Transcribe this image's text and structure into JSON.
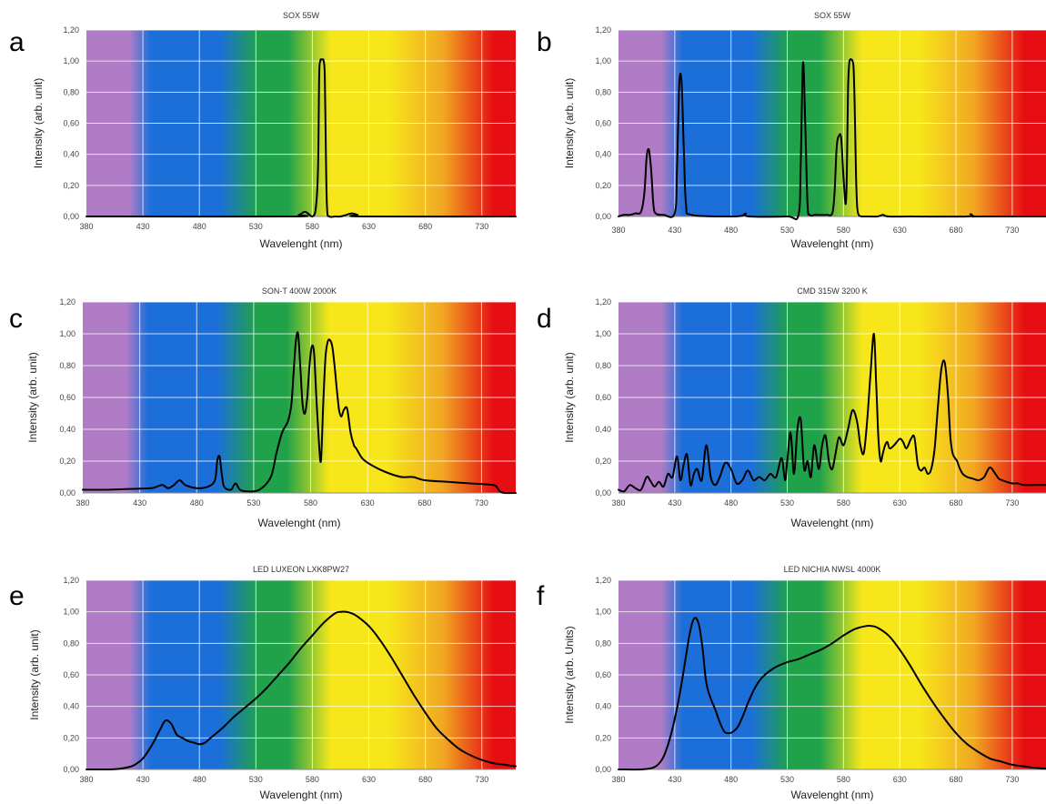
{
  "spectrum_band_colors": [
    "#b07cc6",
    "#1c6fd8",
    "#1fa24a",
    "#f7e71a",
    "#f1a822",
    "#e60d13"
  ],
  "chart_data": [
    {
      "panel": "a",
      "type": "line",
      "title": "SOX 55W",
      "xlabel": "Wavelenght (nm)",
      "ylabel": "Intensity (arb. unit)",
      "xlim": [
        380,
        760
      ],
      "ylim": [
        0,
        1.2
      ],
      "xticks": [
        "380",
        "430",
        "480",
        "530",
        "580",
        "630",
        "680",
        "730"
      ],
      "yticks": [
        "0,00",
        "0,20",
        "0,40",
        "0,60",
        "0,80",
        "1,00",
        "1,20"
      ],
      "grid": true,
      "background": "visible-spectrum",
      "x": [
        380,
        560,
        568,
        573,
        576,
        580,
        583,
        585,
        586,
        587,
        588,
        589,
        590,
        591,
        592,
        593,
        595,
        600,
        605,
        610,
        615,
        620,
        625,
        760
      ],
      "y": [
        0,
        0,
        0.01,
        0.03,
        0.02,
        0,
        0.05,
        0.3,
        0.9,
        1.0,
        1.01,
        1.01,
        1.0,
        0.9,
        0.4,
        0.05,
        0,
        0,
        0,
        0.01,
        0.02,
        0.01,
        0,
        0
      ]
    },
    {
      "panel": "b",
      "type": "line",
      "title": "SOX 55W",
      "xlabel": "Wavelenght (nm)",
      "ylabel": "Intensity (arb. unit)",
      "xlim": [
        380,
        760
      ],
      "ylim": [
        0,
        1.2
      ],
      "xticks": [
        "380",
        "430",
        "480",
        "530",
        "580",
        "630",
        "680",
        "730"
      ],
      "yticks": [
        "0,00",
        "0,20",
        "0,40",
        "0,60",
        "0,80",
        "1,00",
        "1,20"
      ],
      "grid": true,
      "background": "visible-spectrum",
      "x": [
        380,
        385,
        390,
        395,
        400,
        403,
        405,
        407,
        409,
        411,
        413,
        420,
        430,
        432,
        434,
        436,
        438,
        440,
        445,
        480,
        490,
        493,
        496,
        530,
        540,
        542,
        544,
        546,
        548,
        550,
        555,
        565,
        570,
        572,
        574,
        576,
        578,
        580,
        582,
        583,
        584,
        585,
        586,
        587,
        588,
        589,
        590,
        591,
        592,
        593,
        594,
        596,
        600,
        610,
        615,
        620,
        640,
        690,
        693,
        696,
        700,
        760
      ],
      "y": [
        0,
        0.01,
        0.01,
        0.02,
        0.03,
        0.15,
        0.38,
        0.43,
        0.3,
        0.08,
        0.02,
        0.01,
        0.02,
        0.3,
        0.85,
        0.87,
        0.45,
        0.08,
        0.01,
        0,
        0.005,
        0.02,
        0,
        0,
        0.01,
        0.35,
        0.99,
        0.6,
        0.08,
        0.01,
        0.01,
        0.01,
        0.02,
        0.15,
        0.45,
        0.52,
        0.5,
        0.25,
        0.08,
        0.3,
        0.8,
        0.98,
        1.01,
        1.01,
        1.0,
        0.95,
        0.7,
        0.3,
        0.08,
        0.02,
        0.005,
        0,
        0,
        0,
        0.01,
        0,
        0,
        0,
        0.015,
        0,
        0,
        0
      ]
    },
    {
      "panel": "c",
      "type": "line",
      "title": "SON-T 400W 2000K",
      "xlabel": "Wavelenght (nm)",
      "ylabel": "Intensity (arb. unit)",
      "xlim": [
        380,
        760
      ],
      "ylim": [
        0,
        1.2
      ],
      "xticks": [
        "380",
        "430",
        "480",
        "530",
        "580",
        "630",
        "680",
        "730"
      ],
      "yticks": [
        "0,00",
        "0,20",
        "0,40",
        "0,60",
        "0,80",
        "1,00",
        "1,20"
      ],
      "grid": true,
      "background": "visible-spectrum",
      "x": [
        380,
        400,
        420,
        440,
        445,
        450,
        455,
        460,
        465,
        470,
        480,
        490,
        496,
        498,
        500,
        502,
        504,
        510,
        514,
        518,
        525,
        535,
        545,
        550,
        555,
        560,
        563,
        565,
        567,
        569,
        571,
        573,
        575,
        577,
        579,
        581,
        583,
        585,
        587,
        589,
        591,
        593,
        595,
        597,
        599,
        601,
        603,
        605,
        607,
        609,
        612,
        615,
        618,
        620,
        625,
        630,
        640,
        650,
        660,
        670,
        680,
        700,
        720,
        740,
        744,
        746,
        750,
        760
      ],
      "y": [
        0.02,
        0.02,
        0.025,
        0.03,
        0.04,
        0.05,
        0.03,
        0.05,
        0.08,
        0.05,
        0.03,
        0.04,
        0.08,
        0.2,
        0.23,
        0.12,
        0.04,
        0.02,
        0.06,
        0.02,
        0.01,
        0.02,
        0.1,
        0.25,
        0.38,
        0.45,
        0.55,
        0.75,
        0.95,
        1.0,
        0.78,
        0.55,
        0.5,
        0.6,
        0.8,
        0.92,
        0.88,
        0.6,
        0.35,
        0.2,
        0.55,
        0.85,
        0.95,
        0.96,
        0.92,
        0.8,
        0.65,
        0.52,
        0.48,
        0.52,
        0.53,
        0.38,
        0.3,
        0.28,
        0.22,
        0.19,
        0.15,
        0.12,
        0.1,
        0.1,
        0.08,
        0.07,
        0.06,
        0.05,
        0.03,
        0.01,
        0,
        0
      ]
    },
    {
      "panel": "d",
      "type": "line",
      "title": "CMD 315W 3200 K",
      "xlabel": "Wavelenght (nm)",
      "ylabel": "Intensity (arb. unit)",
      "xlim": [
        380,
        760
      ],
      "ylim": [
        0,
        1.2
      ],
      "xticks": [
        "380",
        "430",
        "480",
        "530",
        "580",
        "630",
        "680",
        "730"
      ],
      "yticks": [
        "0,00",
        "0,20",
        "0,40",
        "0,60",
        "0,80",
        "1,00",
        "1,20"
      ],
      "grid": true,
      "background": "visible-spectrum",
      "x": [
        380,
        385,
        390,
        395,
        400,
        405,
        408,
        412,
        416,
        420,
        424,
        428,
        432,
        435,
        438,
        441,
        444,
        447,
        450,
        454,
        458,
        462,
        466,
        470,
        475,
        480,
        485,
        490,
        495,
        500,
        505,
        510,
        515,
        520,
        525,
        528,
        530,
        533,
        536,
        539,
        542,
        545,
        548,
        551,
        554,
        558,
        561,
        564,
        567,
        570,
        573,
        576,
        580,
        584,
        588,
        592,
        595,
        598,
        601,
        604,
        607,
        609,
        611,
        613,
        615,
        617,
        619,
        621,
        625,
        630,
        633,
        636,
        640,
        643,
        646,
        649,
        652,
        655,
        658,
        661,
        664,
        667,
        670,
        673,
        675,
        677,
        679,
        681,
        683,
        686,
        690,
        695,
        700,
        705,
        710,
        715,
        718,
        721,
        725,
        730,
        735,
        740,
        750,
        760
      ],
      "y": [
        0.02,
        0.01,
        0.05,
        0.03,
        0.02,
        0.1,
        0.08,
        0.04,
        0.07,
        0.04,
        0.12,
        0.1,
        0.23,
        0.08,
        0.18,
        0.24,
        0.05,
        0.12,
        0.15,
        0.08,
        0.3,
        0.1,
        0.05,
        0.1,
        0.19,
        0.15,
        0.06,
        0.08,
        0.14,
        0.08,
        0.1,
        0.08,
        0.12,
        0.1,
        0.22,
        0.08,
        0.2,
        0.38,
        0.12,
        0.4,
        0.46,
        0.15,
        0.2,
        0.1,
        0.3,
        0.15,
        0.3,
        0.36,
        0.2,
        0.15,
        0.25,
        0.35,
        0.3,
        0.4,
        0.52,
        0.45,
        0.3,
        0.25,
        0.45,
        0.75,
        1.0,
        0.7,
        0.35,
        0.2,
        0.25,
        0.3,
        0.32,
        0.28,
        0.3,
        0.34,
        0.32,
        0.28,
        0.34,
        0.35,
        0.18,
        0.14,
        0.16,
        0.12,
        0.15,
        0.28,
        0.55,
        0.78,
        0.82,
        0.6,
        0.35,
        0.25,
        0.22,
        0.2,
        0.16,
        0.12,
        0.1,
        0.09,
        0.08,
        0.1,
        0.16,
        0.12,
        0.09,
        0.08,
        0.07,
        0.06,
        0.06,
        0.05,
        0.05,
        0.05
      ]
    },
    {
      "panel": "e",
      "type": "line",
      "title": "LED LUXEON LXK8PW27",
      "xlabel": "Wavelenght (nm)",
      "ylabel": "Intensity (arb. unit)",
      "xlim": [
        380,
        760
      ],
      "ylim": [
        0,
        1.2
      ],
      "xticks": [
        "380",
        "430",
        "480",
        "530",
        "580",
        "630",
        "680",
        "730"
      ],
      "yticks": [
        "0,00",
        "0,20",
        "0,40",
        "0,60",
        "0,80",
        "1,00",
        "1,20"
      ],
      "grid": true,
      "background": "visible-spectrum",
      "x": [
        380,
        400,
        410,
        420,
        425,
        430,
        435,
        440,
        445,
        450,
        455,
        460,
        465,
        470,
        475,
        480,
        485,
        490,
        500,
        510,
        520,
        530,
        540,
        550,
        560,
        570,
        580,
        590,
        600,
        605,
        610,
        615,
        620,
        630,
        640,
        650,
        660,
        670,
        680,
        690,
        700,
        710,
        720,
        730,
        740,
        750,
        760
      ],
      "y": [
        0,
        0,
        0.005,
        0.02,
        0.04,
        0.07,
        0.12,
        0.18,
        0.25,
        0.31,
        0.29,
        0.22,
        0.2,
        0.18,
        0.17,
        0.16,
        0.17,
        0.2,
        0.26,
        0.33,
        0.39,
        0.45,
        0.52,
        0.6,
        0.68,
        0.77,
        0.85,
        0.93,
        0.99,
        1.0,
        1.0,
        0.99,
        0.97,
        0.91,
        0.82,
        0.71,
        0.59,
        0.47,
        0.36,
        0.26,
        0.19,
        0.13,
        0.09,
        0.06,
        0.04,
        0.03,
        0.02
      ]
    },
    {
      "panel": "f",
      "type": "line",
      "title": "LED NICHIA NWSL 4000K",
      "xlabel": "Wavelenght (nm)",
      "ylabel": "Intensity (arb. Units)",
      "xlim": [
        380,
        760
      ],
      "ylim": [
        0,
        1.2
      ],
      "xticks": [
        "380",
        "430",
        "480",
        "530",
        "580",
        "630",
        "680",
        "730"
      ],
      "yticks": [
        "0,00",
        "0,20",
        "0,40",
        "0,60",
        "0,80",
        "1,00",
        "1,20"
      ],
      "grid": true,
      "background": "visible-spectrum",
      "x": [
        380,
        400,
        410,
        415,
        420,
        425,
        430,
        435,
        440,
        443,
        446,
        449,
        452,
        455,
        458,
        462,
        466,
        470,
        474,
        478,
        482,
        486,
        490,
        495,
        500,
        505,
        510,
        520,
        530,
        540,
        550,
        560,
        570,
        580,
        590,
        600,
        605,
        610,
        620,
        630,
        640,
        650,
        660,
        670,
        680,
        690,
        700,
        710,
        720,
        730,
        740,
        750,
        760
      ],
      "y": [
        0,
        0,
        0.01,
        0.03,
        0.08,
        0.18,
        0.32,
        0.5,
        0.72,
        0.85,
        0.94,
        0.96,
        0.9,
        0.75,
        0.55,
        0.45,
        0.38,
        0.3,
        0.24,
        0.23,
        0.24,
        0.27,
        0.33,
        0.42,
        0.5,
        0.56,
        0.6,
        0.65,
        0.68,
        0.7,
        0.73,
        0.76,
        0.8,
        0.85,
        0.89,
        0.91,
        0.91,
        0.9,
        0.85,
        0.76,
        0.65,
        0.53,
        0.42,
        0.32,
        0.23,
        0.16,
        0.11,
        0.07,
        0.05,
        0.03,
        0.02,
        0.01,
        0.005
      ]
    }
  ]
}
